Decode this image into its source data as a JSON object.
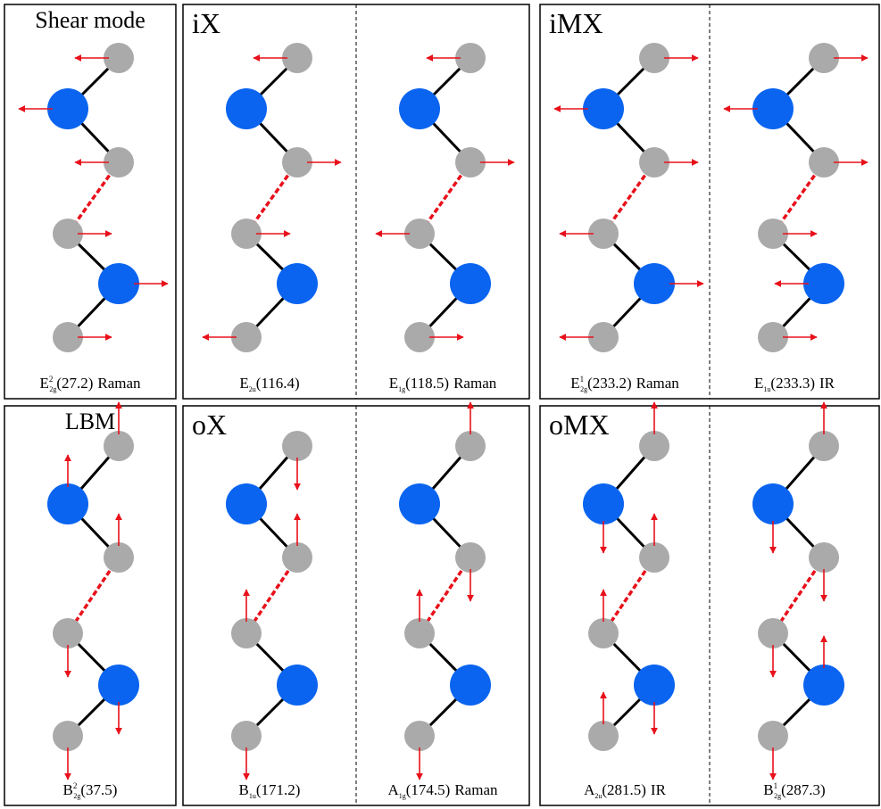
{
  "panels": [
    {
      "title": "Shear mode",
      "modes": [
        {
          "symbol": "E",
          "sup": "2",
          "sub": "2g",
          "freq": "(27.2)",
          "activity": "Raman"
        }
      ]
    },
    {
      "title": "iX",
      "modes": [
        {
          "symbol": "E",
          "sub": "2u",
          "freq": "(116.4)"
        },
        {
          "symbol": "E",
          "sub": "1g",
          "freq": "(118.5)",
          "activity": "Raman"
        }
      ]
    },
    {
      "title": "iMX",
      "modes": [
        {
          "symbol": "E",
          "sup": "1",
          "sub": "2g",
          "freq": "(233.2)",
          "activity": "Raman"
        },
        {
          "symbol": "E",
          "sub": "1u",
          "freq": "(233.3)",
          "activity": "IR"
        }
      ]
    },
    {
      "title": "LBM",
      "modes": [
        {
          "symbol": "B",
          "sup": "2",
          "sub": "2g",
          "freq": "(37.5)"
        }
      ]
    },
    {
      "title": "oX",
      "modes": [
        {
          "symbol": "B",
          "sub": "1u",
          "freq": "(171.2)"
        },
        {
          "symbol": "A",
          "sub": "1g",
          "freq": "(174.5)",
          "activity": "Raman"
        }
      ]
    },
    {
      "title": "oMX",
      "modes": [
        {
          "symbol": "A",
          "sub": "2u",
          "freq": "(281.5)",
          "activity": "IR"
        },
        {
          "symbol": "B",
          "sup": "1",
          "sub": "2g",
          "freq": "(287.3)"
        }
      ]
    }
  ]
}
